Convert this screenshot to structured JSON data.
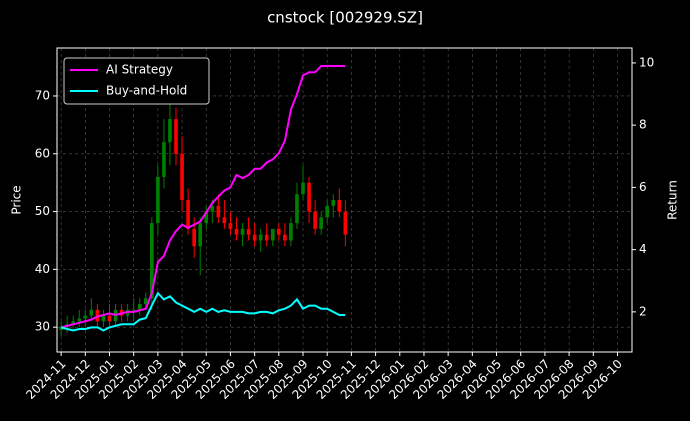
{
  "chart_data": {
    "type": "candlestick",
    "title": "cnstock [002929.SZ]",
    "ylabel": "Price",
    "y2label": "Return",
    "x": [
      0,
      0.25,
      0.5,
      0.75,
      1,
      1.25,
      1.5,
      1.75,
      2,
      2.25,
      2.5,
      2.75,
      3,
      3.25,
      3.5,
      3.75,
      4,
      4.25,
      4.5,
      4.75,
      5,
      5.25,
      5.5,
      5.75,
      6,
      6.25,
      6.5,
      6.75,
      7,
      7.25,
      7.5,
      7.75,
      8,
      8.25,
      8.5,
      8.75,
      9,
      9.25,
      9.5,
      9.75,
      10,
      10.25,
      10.5,
      10.75,
      11,
      11.25,
      11.5,
      11.75
    ],
    "open": [
      29.5,
      30,
      30.5,
      31,
      31.5,
      32,
      33,
      31,
      32,
      31,
      33,
      32,
      33,
      33,
      34,
      35,
      48,
      56,
      62,
      66,
      60,
      52,
      47,
      44,
      48,
      50,
      51,
      49,
      48,
      47,
      46,
      47,
      46,
      45,
      46,
      45,
      47,
      46,
      45,
      48,
      53,
      55,
      50,
      47,
      49,
      51,
      52,
      50
    ],
    "high": [
      31,
      32,
      32,
      33,
      33,
      35,
      34,
      33,
      34,
      34,
      34,
      34,
      35,
      35,
      36,
      49,
      58,
      66,
      70,
      68,
      63,
      54,
      49,
      49,
      51,
      52,
      53,
      52,
      50,
      49,
      48,
      49,
      48,
      47,
      48,
      47,
      48,
      48,
      49,
      55,
      58,
      56,
      52,
      50,
      52,
      53,
      54,
      52
    ],
    "low": [
      28.5,
      29,
      29.5,
      30,
      30,
      31,
      30,
      30,
      30,
      30,
      31,
      31,
      31,
      32,
      33,
      33,
      46,
      54,
      58,
      58,
      50,
      46,
      42,
      39,
      47,
      48,
      48,
      47,
      46,
      45,
      44,
      45,
      44,
      43,
      44,
      44,
      45,
      44,
      44,
      47,
      52,
      48,
      46,
      46,
      48,
      49,
      49,
      44
    ],
    "close": [
      30,
      30.5,
      31,
      31.5,
      32,
      33,
      31,
      32,
      31,
      33,
      32,
      33,
      33,
      34,
      35,
      48,
      56,
      62,
      66,
      60,
      52,
      47,
      44,
      48,
      50,
      51,
      49,
      48,
      47,
      46,
      47,
      46,
      45,
      46,
      45,
      47,
      46,
      45,
      48,
      53,
      55,
      50,
      47,
      49,
      51,
      52,
      50,
      46
    ],
    "up_color": "#008000",
    "down_color": "#ff0000",
    "series": [
      {
        "name": "AI Strategy",
        "color": "#ff00ff",
        "axis": "y2",
        "values": [
          1.5,
          1.55,
          1.6,
          1.65,
          1.7,
          1.75,
          1.85,
          1.9,
          1.95,
          1.9,
          1.95,
          2.0,
          2.0,
          2.05,
          2.1,
          2.6,
          3.6,
          3.8,
          4.3,
          4.6,
          4.8,
          4.7,
          4.8,
          4.9,
          5.2,
          5.5,
          5.7,
          5.9,
          6.0,
          6.4,
          6.3,
          6.4,
          6.6,
          6.6,
          6.8,
          6.9,
          7.1,
          7.5,
          8.5,
          9.0,
          9.6,
          9.7,
          9.7,
          9.9,
          9.9,
          9.9,
          9.9,
          9.9
        ]
      },
      {
        "name": "Buy-and-Hold",
        "color": "#00ffff",
        "axis": "y2",
        "values": [
          1.5,
          1.45,
          1.4,
          1.45,
          1.45,
          1.5,
          1.5,
          1.4,
          1.5,
          1.55,
          1.6,
          1.6,
          1.6,
          1.75,
          1.8,
          2.2,
          2.6,
          2.4,
          2.5,
          2.3,
          2.2,
          2.1,
          2.0,
          2.1,
          2.0,
          2.1,
          2.0,
          2.05,
          2.0,
          2.0,
          2.0,
          1.95,
          1.95,
          2.0,
          2.0,
          1.95,
          2.05,
          2.1,
          2.2,
          2.4,
          2.1,
          2.2,
          2.2,
          2.1,
          2.1,
          2.0,
          1.9,
          1.9
        ]
      }
    ],
    "xlim": [
      -0.17,
      23.6
    ],
    "xticks": [
      {
        "value": 0,
        "label": "2024-11"
      },
      {
        "value": 1,
        "label": "2024-12"
      },
      {
        "value": 2,
        "label": "2025-01"
      },
      {
        "value": 3,
        "label": "2025-02"
      },
      {
        "value": 4,
        "label": "2025-03"
      },
      {
        "value": 5,
        "label": "2025-04"
      },
      {
        "value": 6,
        "label": "2025-05"
      },
      {
        "value": 7,
        "label": "2025-06"
      },
      {
        "value": 8,
        "label": "2025-07"
      },
      {
        "value": 9,
        "label": "2025-08"
      },
      {
        "value": 10,
        "label": "2025-09"
      },
      {
        "value": 11,
        "label": "2025-10"
      },
      {
        "value": 12,
        "label": "2025-11"
      },
      {
        "value": 13,
        "label": "2025-12"
      },
      {
        "value": 14,
        "label": "2026-01"
      },
      {
        "value": 15,
        "label": "2026-02"
      },
      {
        "value": 16,
        "label": "2026-03"
      },
      {
        "value": 17,
        "label": "2026-04"
      },
      {
        "value": 18,
        "label": "2026-05"
      },
      {
        "value": 19,
        "label": "2026-06"
      },
      {
        "value": 20,
        "label": "2026-07"
      },
      {
        "value": 21,
        "label": "2026-08"
      },
      {
        "value": 22,
        "label": "2026-09"
      },
      {
        "value": 23,
        "label": "2026-10"
      }
    ],
    "ylim": [
      25.7,
      78.3
    ],
    "yticks": [
      30,
      40,
      50,
      60,
      70
    ],
    "y2lim": [
      0.71,
      10.48
    ],
    "y2ticks": [
      2,
      4,
      6,
      8,
      10
    ],
    "grid": true,
    "legend": "upper left"
  }
}
